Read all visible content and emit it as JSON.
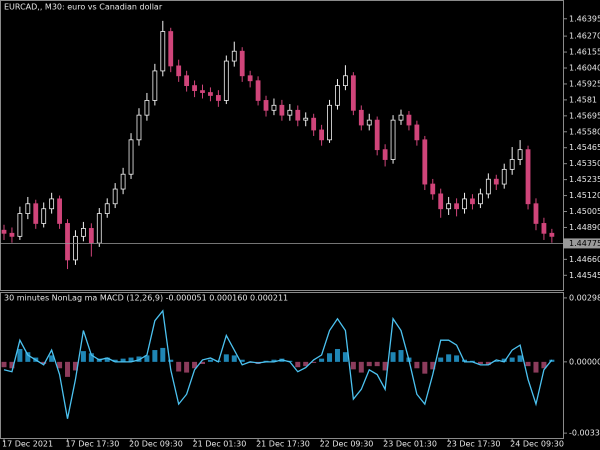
{
  "chart_data": [
    {
      "type": "candlestick",
      "title": "EURCAD,, M30:  euro vs Canadian dollar",
      "categories": [
        "17 Dec 2021",
        null,
        null,
        null,
        null,
        null,
        null,
        null,
        "17 Dec 17:30",
        null,
        null,
        null,
        null,
        null,
        null,
        null,
        "20 Dec 09:30",
        null,
        null,
        null,
        null,
        null,
        null,
        null,
        "21 Dec 01:30",
        null,
        null,
        null,
        null,
        null,
        null,
        null,
        "21 Dec 17:30",
        null,
        null,
        null,
        null,
        null,
        null,
        null,
        "22 Dec 09:30",
        null,
        null,
        null,
        null,
        null,
        null,
        null,
        "23 Dec 01:30",
        null,
        null,
        null,
        null,
        null,
        null,
        null,
        "23 Dec 17:30",
        null,
        null,
        null,
        null,
        null,
        null,
        null,
        "24 Dec 09:30",
        null,
        null,
        null,
        null,
        null
      ],
      "ohlc": [
        [
          1.4487,
          1.4491,
          1.448,
          1.44848
        ],
        [
          1.44848,
          1.4489,
          1.4478,
          1.44826
        ],
        [
          1.44826,
          1.4504,
          1.448,
          1.4499
        ],
        [
          1.4499,
          1.4511,
          1.4495,
          1.45061
        ],
        [
          1.45061,
          1.4509,
          1.4488,
          1.44919
        ],
        [
          1.44919,
          1.4507,
          1.4489,
          1.45025
        ],
        [
          1.45025,
          1.4514,
          1.4499,
          1.45096
        ],
        [
          1.45096,
          1.4512,
          1.4488,
          1.44919
        ],
        [
          1.44919,
          1.4495,
          1.4459,
          1.44656
        ],
        [
          1.44656,
          1.4487,
          1.4462,
          1.44826
        ],
        [
          1.44826,
          1.4493,
          1.4479,
          1.44883
        ],
        [
          1.44883,
          1.4492,
          1.4468,
          1.44777
        ],
        [
          1.44777,
          1.4503,
          1.4475,
          1.4499
        ],
        [
          1.4499,
          1.451,
          1.4496,
          1.45061
        ],
        [
          1.45061,
          1.4521,
          1.4503,
          1.45167
        ],
        [
          1.45167,
          1.4532,
          1.4513,
          1.45274
        ],
        [
          1.45274,
          1.4557,
          1.4524,
          1.45522
        ],
        [
          1.45522,
          1.4575,
          1.4548,
          1.457
        ],
        [
          1.457,
          1.4586,
          1.4566,
          1.45806
        ],
        [
          1.45806,
          1.4607,
          1.4577,
          1.46019
        ],
        [
          1.46019,
          1.4638,
          1.4598,
          1.46303
        ],
        [
          1.46303,
          1.4633,
          1.4601,
          1.46055
        ],
        [
          1.46055,
          1.461,
          1.4594,
          1.45984
        ],
        [
          1.45984,
          1.4602,
          1.4587,
          1.45913
        ],
        [
          1.45913,
          1.4595,
          1.4583,
          1.45877
        ],
        [
          1.45877,
          1.4592,
          1.4582,
          1.45863
        ],
        [
          1.45863,
          1.459,
          1.458,
          1.45842
        ],
        [
          1.45842,
          1.4588,
          1.4576,
          1.45806
        ],
        [
          1.45806,
          1.4613,
          1.4578,
          1.4609
        ],
        [
          1.4609,
          1.4623,
          1.4605,
          1.46161
        ],
        [
          1.46161,
          1.4619,
          1.4594,
          1.45984
        ],
        [
          1.45984,
          1.4602,
          1.459,
          1.45948
        ],
        [
          1.45948,
          1.4598,
          1.4577,
          1.45806
        ],
        [
          1.45806,
          1.4584,
          1.4569,
          1.45735
        ],
        [
          1.45735,
          1.4582,
          1.457,
          1.45771
        ],
        [
          1.45771,
          1.4581,
          1.4566,
          1.457
        ],
        [
          1.457,
          1.4578,
          1.4566,
          1.45735
        ],
        [
          1.45735,
          1.4577,
          1.4562,
          1.45664
        ],
        [
          1.45664,
          1.4572,
          1.4562,
          1.45678
        ],
        [
          1.45678,
          1.4571,
          1.4555,
          1.45593
        ],
        [
          1.45593,
          1.4563,
          1.4548,
          1.45522
        ],
        [
          1.45522,
          1.4581,
          1.455,
          1.45771
        ],
        [
          1.45771,
          1.4596,
          1.4574,
          1.45913
        ],
        [
          1.45913,
          1.4606,
          1.4588,
          1.45984
        ],
        [
          1.45984,
          1.4601,
          1.457,
          1.45735
        ],
        [
          1.45735,
          1.4577,
          1.4559,
          1.45629
        ],
        [
          1.45629,
          1.4571,
          1.4559,
          1.45664
        ],
        [
          1.45664,
          1.4569,
          1.4541,
          1.45451
        ],
        [
          1.45451,
          1.4549,
          1.4533,
          1.4538
        ],
        [
          1.4538,
          1.457,
          1.4535,
          1.45664
        ],
        [
          1.45664,
          1.4574,
          1.4563,
          1.457
        ],
        [
          1.457,
          1.4573,
          1.4559,
          1.45629
        ],
        [
          1.45629,
          1.4566,
          1.4548,
          1.45522
        ],
        [
          1.45522,
          1.4555,
          1.4516,
          1.45203
        ],
        [
          1.45203,
          1.4524,
          1.4509,
          1.45132
        ],
        [
          1.45132,
          1.4517,
          1.4496,
          1.45025
        ],
        [
          1.45025,
          1.4511,
          1.4498,
          1.45061
        ],
        [
          1.45061,
          1.451,
          1.4497,
          1.45025
        ],
        [
          1.45025,
          1.4514,
          1.4499,
          1.45096
        ],
        [
          1.45096,
          1.4513,
          1.4502,
          1.45061
        ],
        [
          1.45061,
          1.4517,
          1.4503,
          1.45132
        ],
        [
          1.45132,
          1.4528,
          1.451,
          1.45238
        ],
        [
          1.45238,
          1.4527,
          1.4516,
          1.45203
        ],
        [
          1.45203,
          1.4535,
          1.4517,
          1.45309
        ],
        [
          1.45309,
          1.4547,
          1.4527,
          1.4538
        ],
        [
          1.4538,
          1.4552,
          1.4534,
          1.45451
        ],
        [
          1.45451,
          1.4548,
          1.4502,
          1.45061
        ],
        [
          1.45061,
          1.451,
          1.4487,
          1.44919
        ],
        [
          1.44919,
          1.4496,
          1.448,
          1.44848
        ],
        [
          1.44848,
          1.4488,
          1.4478,
          1.44826
        ]
      ],
      "up_color": "#f2f2f2",
      "down_color": "#d0457a",
      "current_price": 1.44775,
      "ylim": [
        1.44439,
        1.46516
      ],
      "yticks": [
        1.46395,
        {
          "value": 1.4627,
          "label": "1.46270"
        },
        1.46155,
        {
          "value": 1.4604,
          "label": "1.46040"
        },
        1.45925,
        1.4581,
        1.45695,
        {
          "value": 1.4558,
          "label": "1.45580"
        },
        1.45465,
        {
          "value": 1.4535,
          "label": "1.45350"
        },
        1.45235,
        {
          "value": 1.4512,
          "label": "1.45120"
        },
        1.45005,
        {
          "value": 1.4489,
          "label": "1.44890"
        },
        {
          "value": 1.4466,
          "label": "1.44660"
        },
        1.44545
      ]
    },
    {
      "type": "macd",
      "title": "30 minutes NonLag ma MACD (12,26,9) -0.000051 0.000160 0.000211",
      "histogram": {
        "up_color": "#1f86b5",
        "down_color": "#8c3c5c",
        "values": [
          -0.00025,
          -0.0003,
          0.0006,
          0.00045,
          0.0002,
          -0.0001,
          0.0003,
          -0.0003,
          -0.0007,
          -0.0004,
          0.0005,
          0.0004,
          0.00015,
          0.0002,
          0.0001,
          0.00015,
          0.0002,
          0.00025,
          0.0003,
          0.00055,
          0.00065,
          0.0001,
          -0.00045,
          -0.0005,
          -0.0003,
          -0.0001,
          0.0001,
          5e-05,
          0.00035,
          0.0003,
          0.0001,
          -5e-05,
          -0.0001,
          5e-05,
          0.0001,
          0.00015,
          5e-05,
          -0.00025,
          -0.0002,
          -5e-05,
          0.00015,
          0.0004,
          0.0006,
          0.00045,
          -0.00035,
          -0.0005,
          -0.0002,
          -0.0002,
          -0.0004,
          0.00045,
          0.00055,
          0.0002,
          -0.0003,
          -0.00055,
          -0.00035,
          0.0002,
          0.00035,
          0.0003,
          0.0001,
          5e-05,
          -0.0001,
          -0.00015,
          5e-05,
          0.00015,
          0.0002,
          0.0003,
          -0.0002,
          -0.0005,
          -0.0003,
          0.0001
        ]
      },
      "line": {
        "color": "#4cc2f0",
        "values": [
          -0.00037,
          -0.00046,
          0.00101,
          0.00032,
          9e-05,
          -0.00014,
          0.00055,
          -0.00059,
          -0.00265,
          -0.00082,
          0.00146,
          0.00032,
          9e-05,
          0.00018,
          0,
          0,
          0,
          9e-05,
          0.00032,
          0.00192,
          0.00238,
          -0.00037,
          -0.00197,
          -0.00151,
          -0.00037,
          9e-05,
          0.00018,
          0,
          0.00123,
          0.00055,
          -0.00014,
          0,
          -5e-05,
          0,
          0,
          9e-05,
          0,
          -0.00046,
          -0.00027,
          9e-05,
          0.00032,
          0.00146,
          0.00201,
          0.00146,
          -0.00174,
          -0.00128,
          -0.00037,
          -0.00059,
          -0.00128,
          0.00201,
          0.00146,
          9e-05,
          -0.00151,
          -0.00197,
          -0.00059,
          0.00101,
          0.00101,
          0.00078,
          0,
          0,
          -0.00014,
          -0.00014,
          9e-05,
          0,
          0.00055,
          0.00078,
          -0.00082,
          -0.00197,
          -0.00037,
          9e-05
        ]
      },
      "ylim": [
        -0.00355,
        0.00321
      ],
      "yticks": [
        0.002981,
        {
          "value": 0,
          "label": "0.000000"
        },
        -0.003323
      ]
    }
  ]
}
